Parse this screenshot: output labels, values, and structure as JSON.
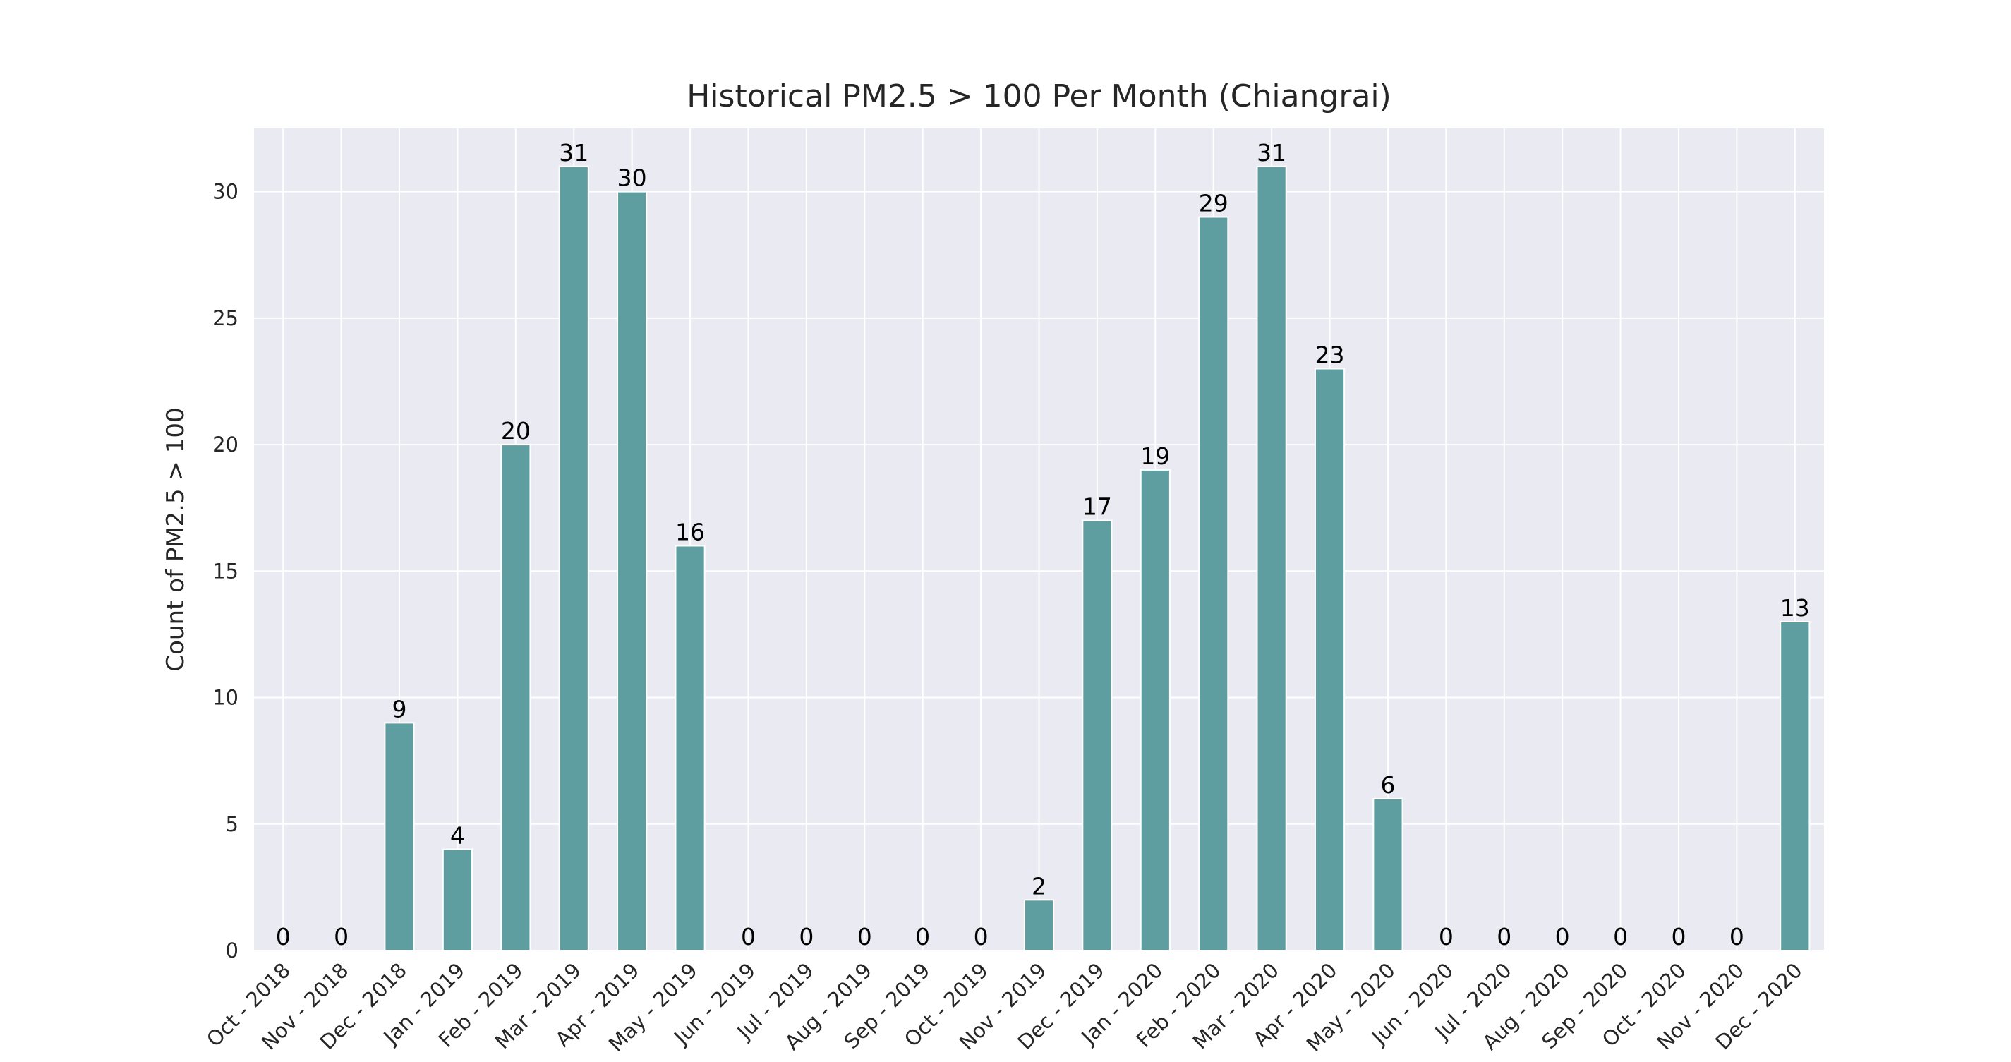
{
  "chart_data": {
    "type": "bar",
    "title": "Historical PM2.5 > 100 Per Month (Chiangrai)",
    "xlabel": "",
    "ylabel": "Count of PM2.5 > 100",
    "ylim": [
      0,
      32.5
    ],
    "yticks": [
      0,
      5,
      10,
      15,
      20,
      25,
      30
    ],
    "grid": true,
    "categories": [
      "Oct - 2018",
      "Nov - 2018",
      "Dec - 2018",
      "Jan - 2019",
      "Feb - 2019",
      "Mar - 2019",
      "Apr - 2019",
      "May - 2019",
      "Jun - 2019",
      "Jul - 2019",
      "Aug - 2019",
      "Sep - 2019",
      "Oct - 2019",
      "Nov - 2019",
      "Dec - 2019",
      "Jan - 2020",
      "Feb - 2020",
      "Mar - 2020",
      "Apr - 2020",
      "May - 2020",
      "Jun - 2020",
      "Jul - 2020",
      "Aug - 2020",
      "Sep - 2020",
      "Oct - 2020",
      "Nov - 2020",
      "Dec - 2020"
    ],
    "values": [
      0,
      0,
      9,
      4,
      20,
      31,
      30,
      16,
      0,
      0,
      0,
      0,
      0,
      2,
      17,
      19,
      29,
      31,
      23,
      6,
      0,
      0,
      0,
      0,
      0,
      0,
      13
    ],
    "bar_color": "#5f9ea0",
    "plot_background": "#eaeaf2",
    "grid_color": "#ffffff"
  }
}
